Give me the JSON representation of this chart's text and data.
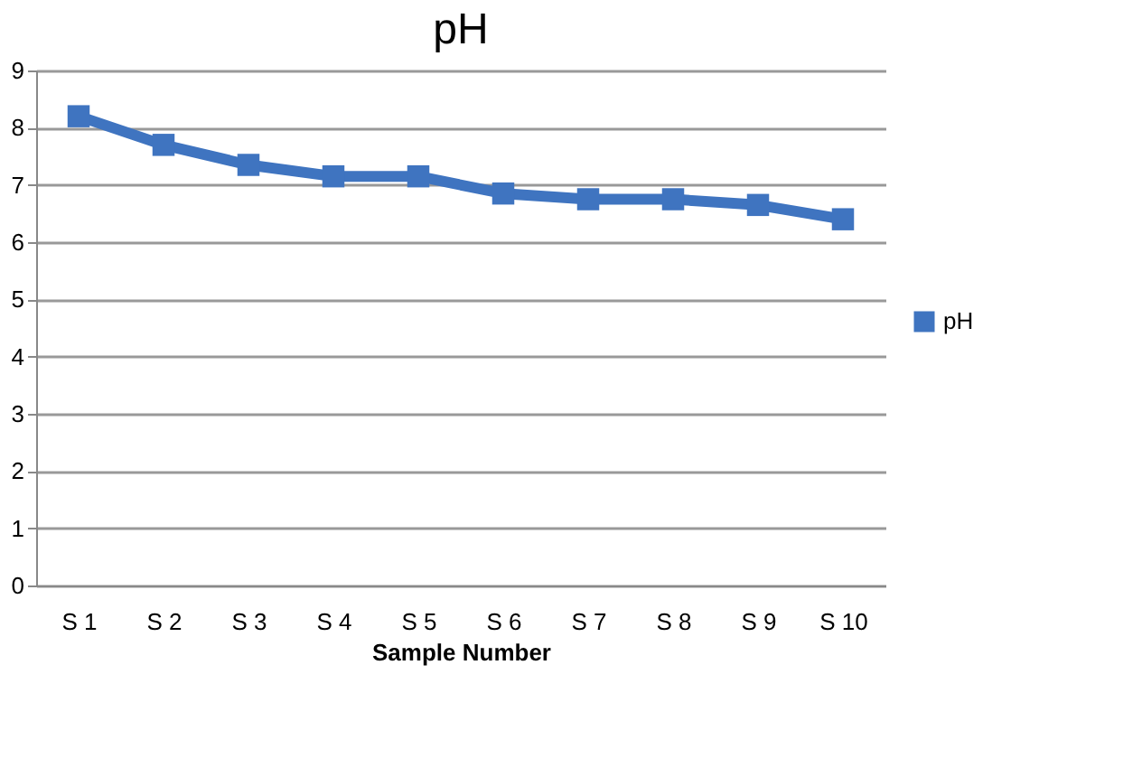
{
  "chart_data": {
    "type": "line",
    "title": "pH",
    "xlabel": "Sample Number",
    "categories": [
      "S 1",
      "S 2",
      "S 3",
      "S 4",
      "S 5",
      "S 6",
      "S 7",
      "S 8",
      "S 9",
      "S 10"
    ],
    "series": [
      {
        "name": "pH",
        "color": "#3f74c0",
        "values": [
          8.2,
          7.7,
          7.35,
          7.15,
          7.15,
          6.85,
          6.75,
          6.75,
          6.65,
          6.4
        ]
      }
    ],
    "ylim": [
      0,
      9
    ],
    "yticks": [
      0,
      1,
      2,
      3,
      4,
      5,
      6,
      7,
      8,
      9
    ],
    "grid": "y",
    "legend": "right",
    "marker": "square",
    "line_style": "solid"
  }
}
